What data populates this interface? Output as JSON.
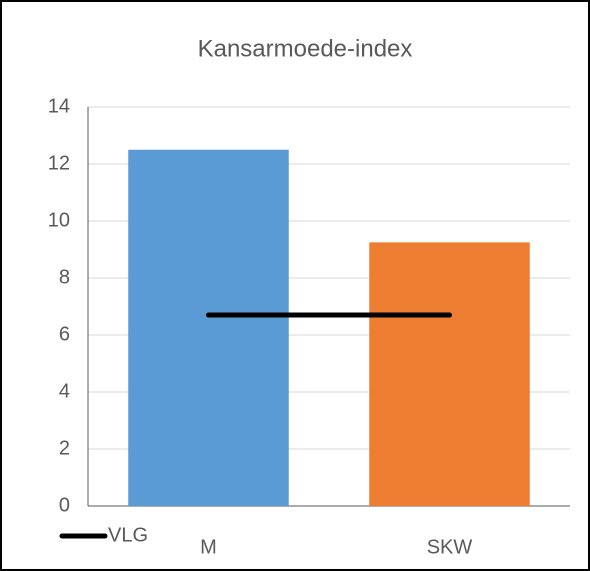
{
  "chart_data": {
    "type": "bar",
    "title": "Kansarmoede-index",
    "categories": [
      "M",
      "SKW"
    ],
    "values": [
      12.5,
      9.25
    ],
    "colors": [
      "#5b9bd5",
      "#ed7d31"
    ],
    "series": [
      {
        "name": "VLG",
        "color": "#000000",
        "values": [
          6.7,
          6.7
        ]
      }
    ],
    "ylim": [
      0,
      14
    ],
    "yticks": [
      0,
      2,
      4,
      6,
      8,
      10,
      12,
      14
    ],
    "grid": true,
    "legend": "bottom-left"
  }
}
